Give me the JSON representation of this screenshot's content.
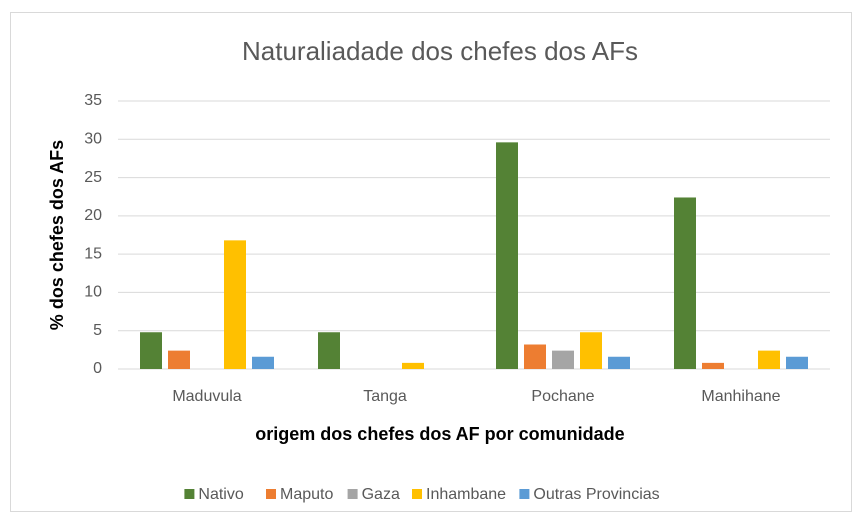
{
  "chart_data": {
    "type": "bar",
    "title": "Naturaliadade dos chefes dos AFs",
    "x_label": "origem dos chefes dos AF por comunidade",
    "y_label": "% dos chefes dos AFs",
    "categories": [
      "Maduvula",
      "Tanga",
      "Pochane",
      "Manhihane"
    ],
    "series": [
      {
        "name": "Nativo",
        "color": "#548235",
        "values": [
          4.8,
          4.8,
          29.6,
          22.4
        ]
      },
      {
        "name": "Maputo",
        "color": "#ed7d31",
        "values": [
          2.4,
          0,
          3.2,
          0.8
        ]
      },
      {
        "name": "Gaza",
        "color": "#a5a5a5",
        "values": [
          0,
          0,
          2.4,
          0
        ]
      },
      {
        "name": "Inhambane",
        "color": "#ffc000",
        "values": [
          16.8,
          0.8,
          4.8,
          2.4
        ]
      },
      {
        "name": "Outras Provincias",
        "color": "#5b9bd5",
        "values": [
          1.6,
          0,
          1.6,
          1.6
        ]
      }
    ],
    "ylim": [
      0,
      35
    ],
    "yticks": [
      0,
      5,
      10,
      15,
      20,
      25,
      30,
      35
    ],
    "grid": true,
    "legend": "bottom"
  }
}
